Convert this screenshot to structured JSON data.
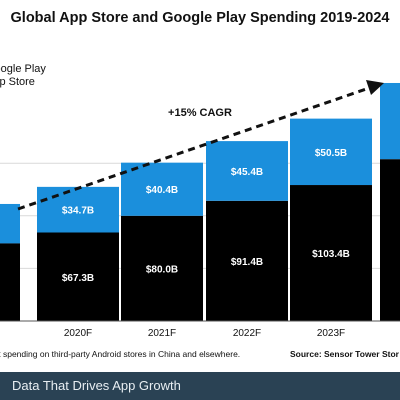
{
  "chart_data": {
    "type": "bar",
    "stacked": true,
    "title": "Global App Store and Google Play Spending 2019-2024",
    "categories": [
      "2020F",
      "2021F",
      "2022F",
      "2023F"
    ],
    "series": [
      {
        "name": "Google Play",
        "values": [
          67.3,
          80.0,
          91.4,
          103.4
        ],
        "labels": [
          "$67.3B",
          "$80.0B",
          "$91.4B",
          "$103.4B"
        ],
        "color": "#000000"
      },
      {
        "name": "App Store",
        "values": [
          34.7,
          40.4,
          45.4,
          50.5
        ],
        "labels": [
          "$34.7B",
          "$40.4B",
          "$45.4B",
          "$50.5B"
        ],
        "color": "#1b8fdc"
      }
    ],
    "annotation": "+15% CAGR",
    "ylim": [
      0,
      170
    ],
    "grid": true,
    "legend_position": "top-left"
  },
  "legend": {
    "items": [
      "Google Play",
      "App Store"
    ]
  },
  "footnote": "ct spending on third-party Android stores in China and elsewhere.",
  "source": "Source: Sensor Tower Stor",
  "banner": "Data That Drives App Growth"
}
